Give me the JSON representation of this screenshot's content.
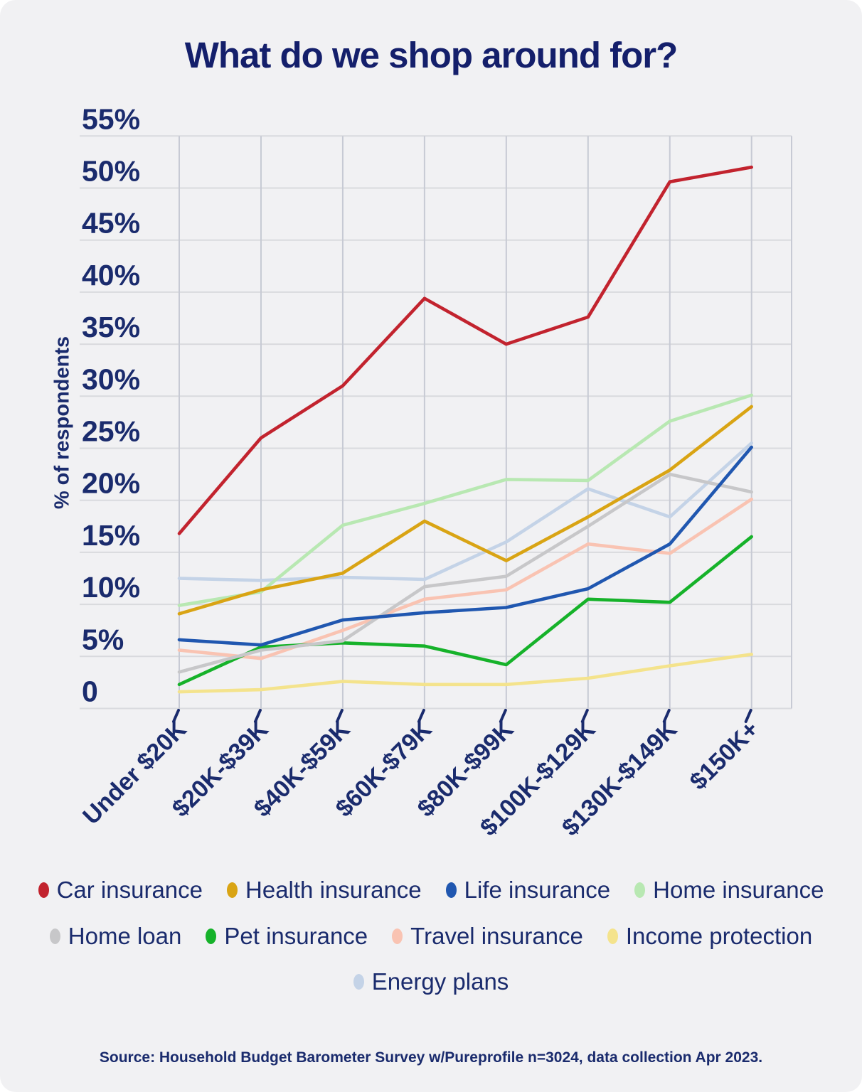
{
  "title": "What do we shop around for?",
  "y_axis_title": "% of respondents",
  "source": "Source: Household Budget Barometer Survey w/Pureprofile n=3024, data collection Apr 2023.",
  "colors": {
    "background": "#f1f1f3",
    "text_navy": "#1a2b6d",
    "title_navy": "#141f6b",
    "h_gridline": "#d9dade",
    "v_gridline": "#c7cad4",
    "tick": "#1a2b6d"
  },
  "chart_data": {
    "type": "line",
    "title": "What do we shop around for?",
    "xlabel": "",
    "ylabel": "% of respondents",
    "ylim": [
      0,
      55
    ],
    "ytick_step": 5,
    "ytick_labels": [
      "0",
      "5%",
      "10%",
      "15%",
      "20%",
      "25%",
      "30%",
      "35%",
      "40%",
      "45%",
      "50%",
      "55%"
    ],
    "grid": true,
    "legend_position": "bottom",
    "categories": [
      "Under $20K",
      "$20K-$39K",
      "$40K-$59K",
      "$60K-$79K",
      "$80K-$99K",
      "$100K-$129K",
      "$130K-$149K",
      "$150K+"
    ],
    "series": [
      {
        "name": "Car insurance",
        "color": "#c2232e",
        "values": [
          16.8,
          26,
          31,
          39.4,
          35,
          37.6,
          50.6,
          52
        ]
      },
      {
        "name": "Health insurance",
        "color": "#d9a414",
        "values": [
          9.1,
          11.4,
          13,
          18,
          14.2,
          18.4,
          22.9,
          29
        ]
      },
      {
        "name": "Life insurance",
        "color": "#2057b0",
        "values": [
          6.6,
          6.1,
          8.5,
          9.2,
          9.7,
          11.5,
          15.8,
          25.1
        ]
      },
      {
        "name": "Home insurance",
        "color": "#b8e8b2",
        "values": [
          9.9,
          11.2,
          17.6,
          19.7,
          22,
          21.9,
          27.6,
          30.1
        ]
      },
      {
        "name": "Home loan",
        "color": "#c7c7c9",
        "values": [
          3.5,
          5.6,
          6.5,
          11.7,
          12.7,
          17.5,
          22.5,
          20.8
        ]
      },
      {
        "name": "Pet insurance",
        "color": "#16b22a",
        "values": [
          2.3,
          5.9,
          6.3,
          6,
          4.2,
          10.5,
          10.2,
          16.5
        ]
      },
      {
        "name": "Travel insurance",
        "color": "#f9c3b2",
        "values": [
          5.6,
          4.8,
          7.5,
          10.5,
          11.4,
          15.8,
          14.9,
          20.1
        ]
      },
      {
        "name": "Income protection",
        "color": "#f4e38c",
        "values": [
          1.6,
          1.8,
          2.6,
          2.3,
          2.3,
          2.9,
          4.1,
          5.2
        ]
      },
      {
        "name": "Energy plans",
        "color": "#c4d3e7",
        "values": [
          12.5,
          12.3,
          12.6,
          12.4,
          16,
          21.1,
          18.4,
          25.5
        ]
      }
    ],
    "legend_rows": [
      4,
      4,
      1
    ],
    "legend_row_tops": [
      1233,
      1298,
      1362
    ]
  }
}
